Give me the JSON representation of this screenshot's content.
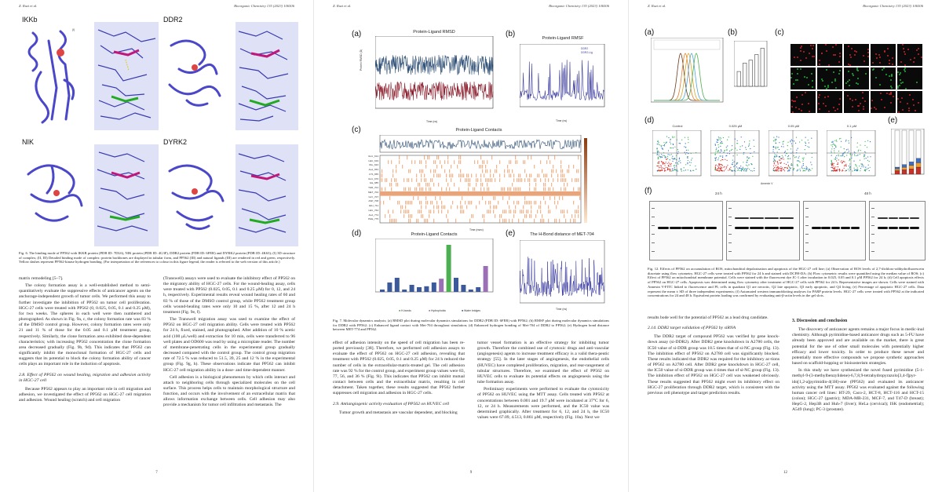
{
  "page1": {
    "running_head_left": "Z. Ruzi et al.",
    "running_head_right": "Bioorganic Chemistry 135 (2023) 106506",
    "panel_labels": [
      "IKKb",
      "DDR2",
      "NIK",
      "DYRK2"
    ],
    "figure_caption": "Fig. 6. The binding mode of PP562 with IKKB protein (PDB ID: 7DL6), NIK protein (PDB ID: 4G3F), DDR2 protein (PDB ID: 6FER) and DYRK2 protein (PDB ID: 4K63); (I) 3D structure of complex; (II, III) Detailed binding mode of complex: protein backbones are displayed in tubular form, and PP562 (III) and natural ligands (III) are rendered in red and green, respectively. Yellow dashes represent PP562-kinase hydrogen bonding. (For interpretation of the references to colour in this figure legend, the reader is referred to the web version of this article.)",
    "col1": [
      "matrix remodeling [5–7].",
      "The colony formation assay is a well-established method to semi-quantitatively evaluate the suppressive effects of anticancer agents on the anchorage-independent growth of tumor cells. We performed this assay to further investigate the inhibition of PP562 on tumor cell proliferation. HGC-27 cells were treated with PP562 (0, 0.025, 0.05, 0.1 and 0.25 μM), for two weeks. The spheres in each well were then numbered and photographed. As shown in Fig. 9a, c, the colony formation rate was 83 % of the DMSO control group. However, colony formation rates were only 21 and 11 % of those for the 0.05 and 0.1 μM treatment group, respectively. Similarly, the clone formation area exhibited dose-dependent characteristics; with increasing PP562 concentration the clone formation area decreased gradually (Fig. 9b, 9d). This indicates that PP562 can significantly inhibit the monoclonal formation of HGC-27 cells and suggests that its potential to block the colony formation ability of cancer cells plays an important role in the induction of apoptosis."
    ],
    "col1_section": "2.8. Effect of PP562 on wound healing, migration and adhesion activity in HGC-27 cell",
    "col1_after": "Because PP562 appears to play an important role in cell migration and adhesion, we investigated the effect of PP562 on HGC-27 cell migration and adhesion. Wound healing (scratch) and cell migration",
    "col2": [
      "(Transwell) assays were used to evaluate the inhibitory effect of PP562 on the migratory ability of HGC-27 cells. For the wound-healing assay, cells were treated with PP562 (0.025, 0.05, 0.1 and 0.25 μM) for 0, 12, and 24 h, respectively. Experimental results reveal wound healing rates of 60 and 83 % of those of the DMSO control group, while PP562 treatment group cells wound-healing rates were only 10 and 15 %, after 12 and 24 h treatment (Fig. 9e, f).",
      "The Transwell migration assay was used to examine the effect of PP562 on HGC-27 cell migration ability. Cells were treated with PP562 for 24 h, fixed, stained, and photographed. After addition of 10 % acetic acid (100 μL/well) and extraction for 10 min, cells were transferred to 96 well plates and OD600 was read by using a microplate reader. The number of membrane-penetrating cells in the experimental group gradually decreased compared with the control group. The control group migration rate of 72.5 % was reduced to 51.5, 39, 25 and 12 % in the experimental group (Fig. 9g, h). These observations indicate that PP562 can inhibit HGC-27 cell migration ability in a dose- and time-dependent manner.",
      "Cell adhesion is a biological phenomenon by which cells interact and attach to neighboring cells through specialized molecules on the cell surface. This process helps cells to maintain morphological structure and function, and occurs with the involvement of an extracellular matrix that allows information exchange between cells. Cell adhesion may also provide a mechanism for tumor cell infiltration and metastasis. The"
    ],
    "page_number": "7"
  },
  "page2": {
    "running_head_left": "Z. Ruzi et al.",
    "running_head_right": "Bioorganic Chemistry 135 (2023) 106506",
    "panel_a": {
      "label": "(a)",
      "title": "Protein-Ligand RMSD",
      "xlabel": "Time (ns)",
      "ylabel": "Protein RMSD (Å)",
      "ylabel2": "Ligand RMSD (Å)",
      "xticks": [
        "0",
        "20",
        "40",
        "60",
        "80",
        "100",
        "120",
        "140",
        "160",
        "180",
        "200"
      ]
    },
    "panel_b": {
      "label": "(b)",
      "title": "Protein-Ligand RMSF",
      "xlabel": "Time (ns)",
      "ylabel": "RMSF",
      "legend": [
        "DDR2",
        "DDR2-Lig"
      ]
    },
    "panel_c": {
      "label": "(c)",
      "title": "Protein-Ligand Contacts",
      "xlabel": "Time (nsec)",
      "ylabel": "Total Contacts",
      "residues": [
        "GLU_614",
        "LEU_619",
        "VAL_624",
        "ALA_653",
        "LYS_655",
        "GLU_676",
        "ILE_685",
        "THR_701",
        "MET_704",
        "GLY_707",
        "ASP_708",
        "LEU_711",
        "LEU_764",
        "ALA_774",
        "PHE_775"
      ],
      "xticks": [
        "0",
        "20",
        "40",
        "60",
        "80",
        "100",
        "120",
        "140",
        "160",
        "180",
        "200"
      ]
    },
    "panel_d": {
      "label": "(d)",
      "title": "Protein-Ligand Contacts",
      "ylabel": "Interaction Fraction",
      "legend": [
        "H-bonds",
        "Hydrophobic",
        "Water bridges"
      ]
    },
    "panel_e": {
      "label": "(e)",
      "title": "The H-Bond distance of MET-704",
      "xlabel": "Time (ns)",
      "ylabel": "Distance (Å)"
    },
    "figure_caption": "Fig. 7. Molecular dynamics analysis; (a) RMSD plot during molecular dynamics simulations for DDR2 (PDB ID: 6FER) with PP562; (b) RMSF plot during molecular dynamics simulations for DDR2 with PP562; (c) Enhanced ligand contact with Met-704 throughout simulation; (d) Enhanced hydrogen bonding of Met-704 of DDR2 to PP562; (e) Hydrogen bond distance between MET-774 and PP562.",
    "col1": [
      "effect of adhesion intensity on the speed of cell migration has been re-ported previously [38]. Therefore, we performed cell adhesion assays to evaluate the effect of PP562 on HGC-27 cell adhesion, revealing that treatment with PP562 (0.025, 0.05, 0.1 and 0.25 μM) for 24 h reduced the number of cells in the extracellular-matrix-treated gel. The cell adhesion rate was 92 % for the control group, and experiment group values were 83, 77, 56, and 36 % (Fig. 9i). This indicates that PP562 can inhibit mutual contact between cells and the extracellular matrix, resulting in cell detachment. Taken together, these results suggested that PP562 further suppresses cell migration and adhesion in HGC-27 cells."
    ],
    "col1_section": "2.9. Antiangiogenic activity evaluation of PP562 on HUVEC cell",
    "col1_after": "Tumor growth and metastasis are vascular dependent, and blocking",
    "col2": [
      "tumor vessel formation is an effective strategy for inhibiting tumor growth. Therefore the combined use of cytotoxic drugs and anti-vascular (angiogenesis) agents to increase treatment efficacy is a valid thera-peutic strategy [55]. In the later stages of angiogenesis, the endothelial cells (HUVEC) have completed proliferation, migration, and rear-rangement of tubular structures. Therefore, we examined the effect of PP562 on HUVEC cells to evaluate its potential effects on angiogenesis using the tube formation assay.",
      "Preliminary experiments were performed to evaluate the cytotoxicity of PP562 on HUVEC using the MTT assay. Cells treated with PP562 at concentrations between 0.001 and 19.7 μM were incubated at 37°C for 6, 12, or 24 h. Measurements were performed, and the IC50 value was determined graphically. After treatment for 6, 12, and 24 h, the IC50 values were 67.09, 4.513, 0.861 μM, respectively (Fig. 10a). Next we"
    ],
    "page_number": "9"
  },
  "page3": {
    "running_head_left": "Z. Ruzi et al.",
    "running_head_right": "Bioorganic Chemistry 135 (2023) 106506",
    "panel_labels": [
      "(a)",
      "(b)",
      "(c)",
      "(d)",
      "(e)",
      "(f)"
    ],
    "flow_titles": [
      "Control",
      "0.025 μM",
      "0.05 μM",
      "0.1 μM"
    ],
    "flow_xlabel": "Annexin V",
    "blot_times": [
      "24 h",
      "48 h"
    ],
    "figure_caption": "Fig. 12. Effects of PP562 on accumulation of ROS, mitochondrial depolarization and apoptosis of the HGC-27 cell line; (a) Observation of ROS levels of 2,7-dichloro-odihydrofluorescein diacetate using flow cytometry. HGC-27 cells were treated with PP562 for 24 h and stained with DCFH-DA; (b) Flow cytometric results were quantified using the median value of ROS; (c) Effect of PP562 on mitochondrial membrane potential. Cells were stained with the fluorescent dye JC-1 after incubation in 0.025, 0.05 and 0.1 μM PP562 for 24 h; (d) Cell apoptosis effects of PP562 on HGC-27 cells. Apoptosis was determined using flow cytometry after treatment of HGC-27 cells with PP562 for 24 h. Representative images are shown. Cells were stained with Annexin V-FITC linked to fluorescence and PI; cells in quadrant Q1 are necrotic, Q2 late apoptotic, Q3 early apoptotic, and Q4 living; (e) Percentage of apoptotic HGC-27 cells. Data represent the mean ± SD of three independent experiments; (f) Automated western immunoblotting analyses for PARP protein levels. HGC-27 cells were treated with PP562 at the indicated concentrations for 24 and 48 h. Equivalent protein loading was confirmed by evaluating anti-β-actin levels in the gel slots.",
    "col1_intro": "results bode well for the potential of PP562 as a lead drug candidate.",
    "col1_section": "2.14. DDR2 target validation of PP562 by siRNA",
    "col1": [
      "The DDR2 target of compound PP562 was verified by gene knock-down assay (si-DDR2). After DDR2 gene knockdown in A2780 cells, the IC50 value of si-DDR group was 18.5 times that of si-NC group (Fig. 13). The inhibition effect of PP562 on A2780 cell was significantly blocked. These results indicated that DDR2 was required for the inhibitory ac-tions of PP562 on A2780 cell. After DDR2 gene knockdown in HGC-27 cell, the IC50 value of si-DDR group was 4 times that of si-NC group (Fig. 13). The inhibition effect of PP562 on HGC-27 cell was weakened obviously. These results suggested that PP562 might exert its inhibitory effect on HGC-27 proliferation through DDR2 target, which is consistent with the previous cell phenotype and target prediction results."
    ],
    "col2_section": "3. Discussion and conclusion",
    "col2": [
      "The discovery of anticancer agents remains a major focus in medic-inal chemistry. Although pyrimidine-based anticancer drugs such as 5-FU have already been approved and are available on the market, there is great potential for the use of other small molecules with potentially higher efficacy and lower toxicity. In order to produce these newer and potentially more effective compounds we propose synthetic approaches based on scaffold-hopping or bioisosterism strategies.",
      "In this study we have synthesized the novel fused pyrimidine (5-1-methyl-9-(3-methylbenzylidene)-6,7,8,9-tetrahydropyrazolo[3,4-f]pyr-ido[1,2-a]pyrimidin-4(1H)-one (PP562) and evaluated its anticancer activity using the MTT assay. PP562 was evaluated against the following human cancer cell lines: HT-29, Caco-2, HCT-8, HCT-116 and HCT-15 (colon); HGC-27 (gastric); MDA-MB-231, MCF-7, and T47-D (breast); HepG-2, Hep3B and Huh-7 (liver); HeLa (cervical); ISK (endometrial); A549 (lung); PC-3 (prostate)."
    ],
    "page_number": "12"
  }
}
